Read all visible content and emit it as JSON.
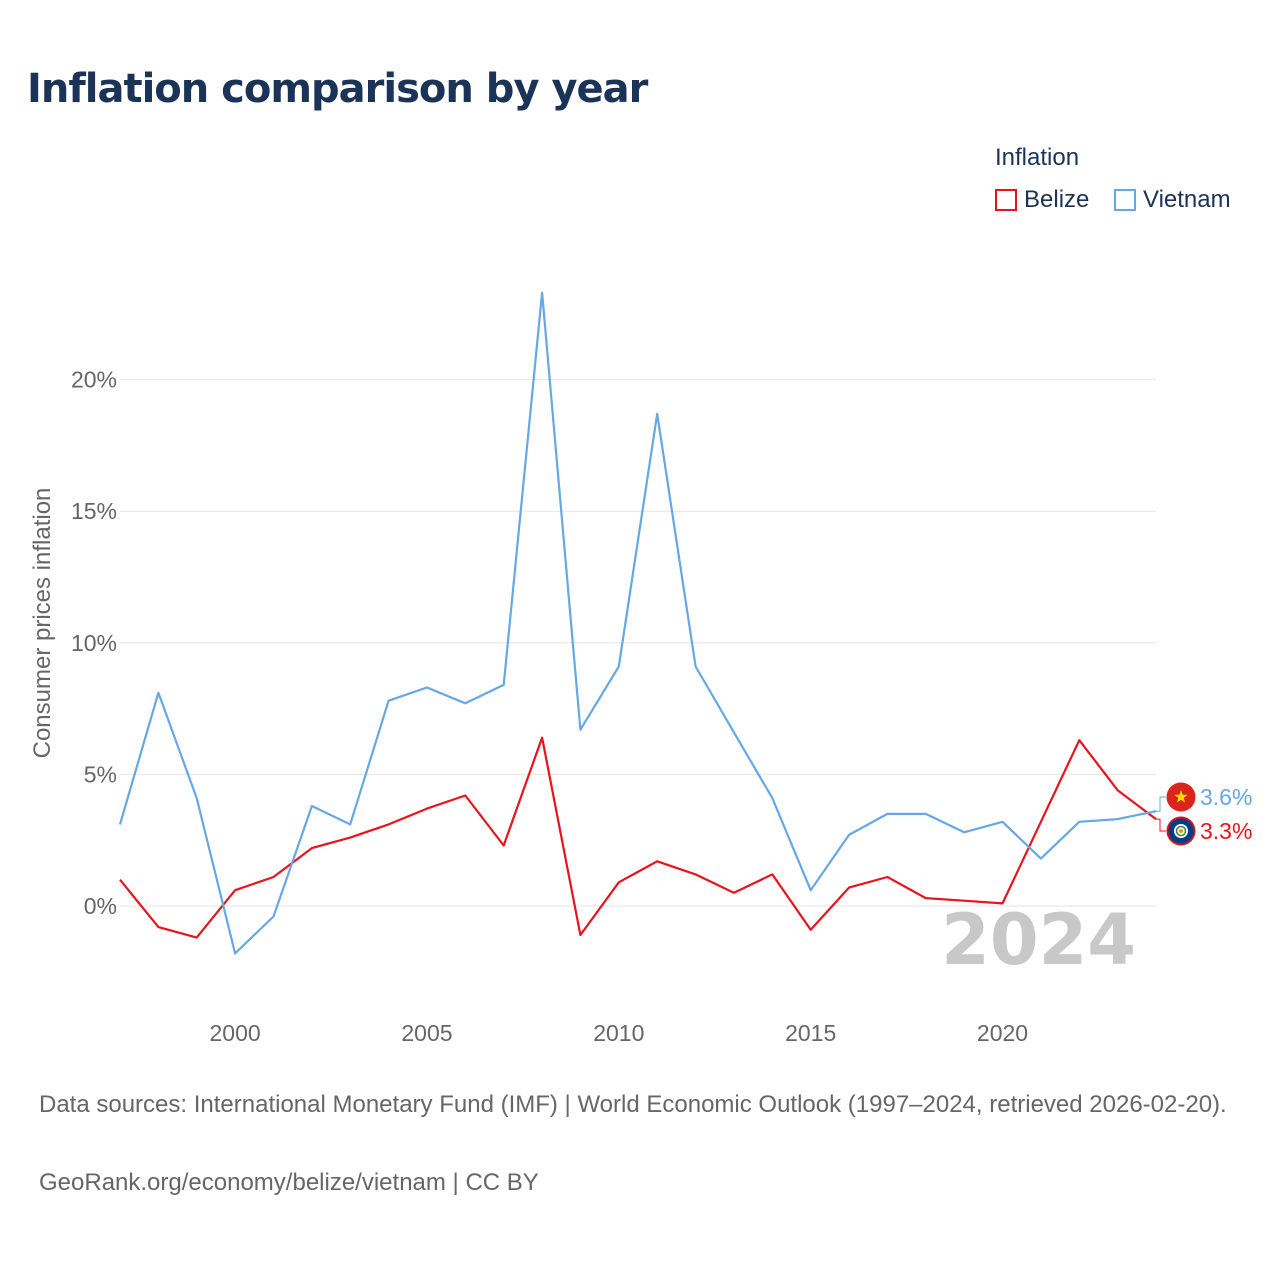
{
  "title": "Inflation comparison by year",
  "legend": {
    "title": "Inflation",
    "items": [
      {
        "name": "Belize",
        "color": "#e8141c"
      },
      {
        "name": "Vietnam",
        "color": "#65a8e5"
      }
    ]
  },
  "chart_data": {
    "type": "line",
    "title": "Inflation comparison by year",
    "xlabel": "",
    "ylabel": "Consumer prices inflation",
    "x": [
      1997,
      1998,
      1999,
      2000,
      2001,
      2002,
      2003,
      2004,
      2005,
      2006,
      2007,
      2008,
      2009,
      2010,
      2011,
      2012,
      2013,
      2014,
      2015,
      2016,
      2017,
      2018,
      2019,
      2020,
      2021,
      2022,
      2023,
      2024
    ],
    "xlim": [
      1997,
      2024
    ],
    "ylim": [
      -3,
      25
    ],
    "xticks": [
      {
        "value": 2000,
        "label": "2000"
      },
      {
        "value": 2005,
        "label": "2005"
      },
      {
        "value": 2010,
        "label": "2010"
      },
      {
        "value": 2015,
        "label": "2015"
      },
      {
        "value": 2020,
        "label": "2020"
      }
    ],
    "yticks": [
      {
        "value": 0,
        "label": "0%"
      },
      {
        "value": 5,
        "label": "5%"
      },
      {
        "value": 10,
        "label": "10%"
      },
      {
        "value": 15,
        "label": "15%"
      },
      {
        "value": 20,
        "label": "20%"
      }
    ],
    "grid": true,
    "series": [
      {
        "name": "Belize",
        "color": "#e8141c",
        "values": [
          1.0,
          -0.8,
          -1.2,
          0.6,
          1.1,
          2.2,
          2.6,
          3.1,
          3.7,
          4.2,
          2.3,
          6.4,
          -1.1,
          0.9,
          1.7,
          1.2,
          0.5,
          1.2,
          -0.9,
          0.7,
          1.1,
          0.3,
          0.2,
          0.1,
          3.2,
          6.3,
          4.4,
          3.3
        ]
      },
      {
        "name": "Vietnam",
        "color": "#65a8e5",
        "values": [
          3.1,
          8.1,
          4.1,
          -1.8,
          -0.4,
          3.8,
          3.1,
          7.8,
          8.3,
          7.7,
          8.4,
          23.3,
          6.7,
          9.1,
          18.7,
          9.1,
          6.6,
          4.1,
          0.6,
          2.7,
          3.5,
          3.5,
          2.8,
          3.2,
          1.8,
          3.2,
          3.3,
          3.6
        ]
      }
    ],
    "end_labels": [
      {
        "series": "Vietnam",
        "label": "3.6%",
        "color": "#65a8e5",
        "flag": "vietnam-flag"
      },
      {
        "series": "Belize",
        "label": "3.3%",
        "color": "#e8141c",
        "flag": "belize-flag"
      }
    ],
    "watermark": "2024"
  },
  "footer": {
    "sources": "Data sources: International Monetary Fund (IMF) | World Economic Outlook (1997–2024, retrieved 2026-02-20).",
    "credit": "GeoRank.org/economy/belize/vietnam | CC BY"
  }
}
